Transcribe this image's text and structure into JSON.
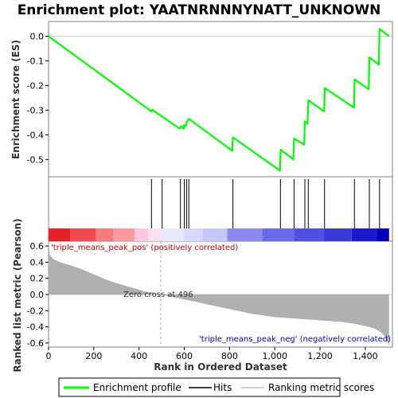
{
  "chart_data": {
    "type": "line",
    "title": "Enrichment plot: YAATNRNNNYNATT_UNKNOWN",
    "xlabel": "Rank in Ordered Dataset",
    "ylabel_top": "Enrichment score (ES)",
    "ylabel_bottom": "Ranked list metric (Pearson)",
    "x_ticks": [
      "0",
      "200",
      "400",
      "600",
      "800",
      "1,000",
      "1,200",
      "1,400"
    ],
    "x_tick_values": [
      0,
      200,
      400,
      600,
      800,
      1000,
      1200,
      1400
    ],
    "xlim": [
      0,
      1520
    ],
    "es_ylim": [
      -0.57,
      0.06
    ],
    "es_ticks": [
      "0.0",
      "-0.1",
      "-0.2",
      "-0.3",
      "-0.4",
      "-0.5"
    ],
    "es_tick_values": [
      0.0,
      -0.1,
      -0.2,
      -0.3,
      -0.4,
      -0.5
    ],
    "metric_ylim": [
      -0.65,
      0.66
    ],
    "metric_ticks": [
      "0.6",
      "0.4",
      "0.2",
      "0.0",
      "-0.2",
      "-0.4",
      "-0.6"
    ],
    "metric_tick_values": [
      0.6,
      0.4,
      0.2,
      0.0,
      -0.2,
      -0.4,
      -0.6
    ],
    "es_series": {
      "name": "Enrichment profile",
      "color": "#00ff00",
      "x": [
        0,
        455,
        458,
        580,
        585,
        598,
        600,
        607,
        610,
        620,
        812,
        815,
        1023,
        1026,
        1082,
        1085,
        1130,
        1133,
        1145,
        1148,
        1218,
        1221,
        1350,
        1353,
        1415,
        1418,
        1460,
        1463,
        1505
      ],
      "y": [
        0.0,
        -0.305,
        -0.298,
        -0.375,
        -0.365,
        -0.375,
        -0.36,
        -0.365,
        -0.35,
        -0.335,
        -0.465,
        -0.41,
        -0.545,
        -0.46,
        -0.5,
        -0.415,
        -0.44,
        -0.345,
        -0.355,
        -0.26,
        -0.305,
        -0.21,
        -0.29,
        -0.175,
        -0.215,
        -0.085,
        -0.115,
        0.03,
        0.0
      ]
    },
    "hits": {
      "name": "Hits",
      "x": [
        455,
        502,
        583,
        600,
        610,
        620,
        815,
        1025,
        1085,
        1133,
        1148,
        1220,
        1352,
        1418,
        1463
      ]
    },
    "metric": {
      "name": "Ranking metric scores",
      "color": "#b0b0b0",
      "x": [
        0,
        5,
        20,
        50,
        100,
        150,
        200,
        250,
        300,
        350,
        400,
        450,
        496,
        550,
        600,
        700,
        800,
        900,
        1000,
        1100,
        1200,
        1300,
        1350,
        1400,
        1440,
        1470,
        1490,
        1505
      ],
      "y": [
        0.66,
        0.5,
        0.44,
        0.4,
        0.36,
        0.31,
        0.25,
        0.19,
        0.14,
        0.1,
        0.06,
        0.02,
        0.0,
        -0.03,
        -0.06,
        -0.12,
        -0.18,
        -0.24,
        -0.28,
        -0.3,
        -0.32,
        -0.34,
        -0.36,
        -0.39,
        -0.42,
        -0.47,
        -0.53,
        -0.63
      ]
    },
    "zero_cross_label": "Zero cross at 496",
    "zero_cross": 496,
    "pos_label": "'triple_means_peak_pos' (positively correlated)",
    "neg_label": "'triple_means_peak_neg' (negatively correlated)",
    "pos_label_color": "#cc0000",
    "neg_label_color": "#0000cc",
    "colorbar_segments": [
      {
        "from": 0,
        "to": 95,
        "color": "#e8202a"
      },
      {
        "from": 95,
        "to": 210,
        "color": "#f04a50"
      },
      {
        "from": 210,
        "to": 285,
        "color": "#f57a7e"
      },
      {
        "from": 285,
        "to": 380,
        "color": "#f99a9c"
      },
      {
        "from": 380,
        "to": 440,
        "color": "#fcc8e4"
      },
      {
        "from": 440,
        "to": 500,
        "color": "#fde0f0"
      },
      {
        "from": 500,
        "to": 600,
        "color": "#e8e8fc"
      },
      {
        "from": 600,
        "to": 680,
        "color": "#d8d8fa"
      },
      {
        "from": 680,
        "to": 790,
        "color": "#c6c6f8"
      },
      {
        "from": 790,
        "to": 945,
        "color": "#8a8af0"
      },
      {
        "from": 945,
        "to": 1085,
        "color": "#6a6ae8"
      },
      {
        "from": 1085,
        "to": 1215,
        "color": "#5050e0"
      },
      {
        "from": 1215,
        "to": 1340,
        "color": "#3a3ad8"
      },
      {
        "from": 1340,
        "to": 1450,
        "color": "#1a1ad0"
      },
      {
        "from": 1450,
        "to": 1505,
        "color": "#0000b8"
      }
    ],
    "legend": {
      "position": "bottom",
      "items": [
        "Enrichment profile",
        "Hits",
        "Ranking metric scores"
      ]
    }
  }
}
